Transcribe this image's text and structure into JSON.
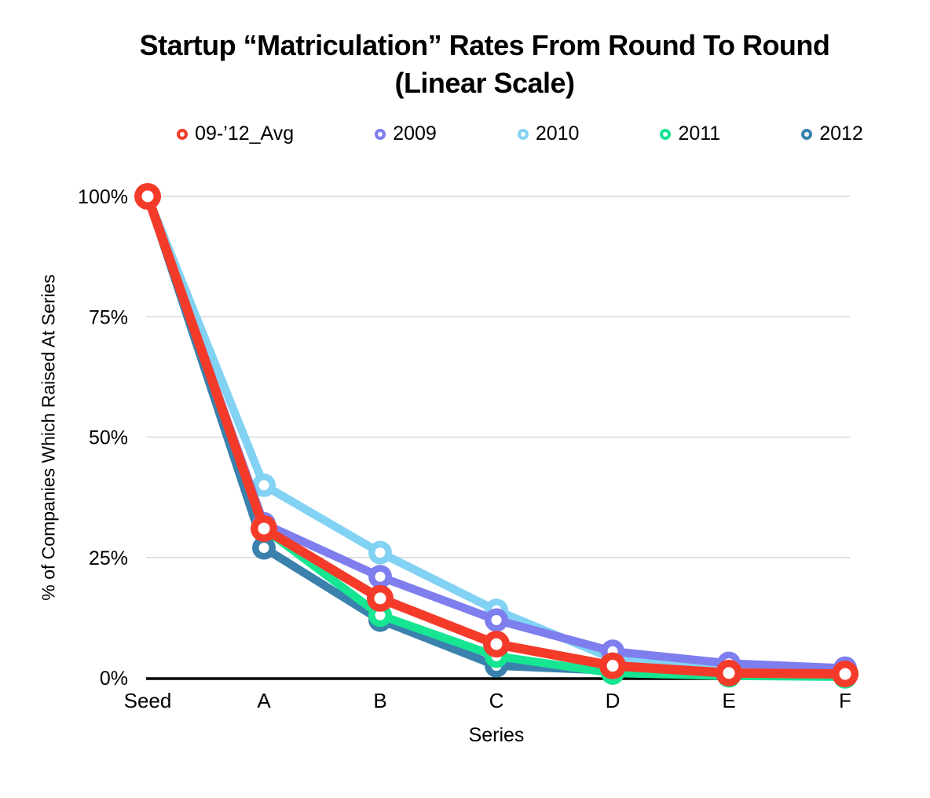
{
  "title": {
    "line1": "Startup “Matriculation” Rates From Round To Round",
    "line2": "(Linear Scale)"
  },
  "chart_data": {
    "type": "line",
    "title": "Startup “Matriculation” Rates From Round To Round (Linear Scale)",
    "xlabel": "Series",
    "ylabel": "% of Companies Which Raised At Series",
    "categories": [
      "Seed",
      "A",
      "B",
      "C",
      "D",
      "E",
      "F"
    ],
    "y_tick_values": [
      0,
      25,
      50,
      75,
      100
    ],
    "y_tick_labels": [
      "0%",
      "25%",
      "50%",
      "75%",
      "100%"
    ],
    "ylim": [
      0,
      100
    ],
    "grid": "horizontal",
    "legend_position": "top",
    "series": [
      {
        "name": "09-’12_Avg",
        "color": "#f43b2a",
        "values": [
          100,
          31,
          16.5,
          7,
          2.5,
          1,
          0.8
        ]
      },
      {
        "name": "2009",
        "color": "#7e7eee",
        "values": [
          100,
          32,
          21,
          12,
          5.5,
          3,
          2
        ]
      },
      {
        "name": "2010",
        "color": "#82d2f3",
        "values": [
          100,
          40,
          26,
          14,
          4,
          1.5,
          1
        ]
      },
      {
        "name": "2011",
        "color": "#16e591",
        "values": [
          100,
          31,
          13,
          4.5,
          1,
          0.4,
          0.2
        ]
      },
      {
        "name": "2012",
        "color": "#3a82ad",
        "values": [
          100,
          27,
          12,
          2.5,
          1.5,
          null,
          null
        ]
      }
    ],
    "colors": {
      "gridline": "#d9d9d9",
      "axis": "#000000",
      "background": "#ffffff"
    }
  }
}
